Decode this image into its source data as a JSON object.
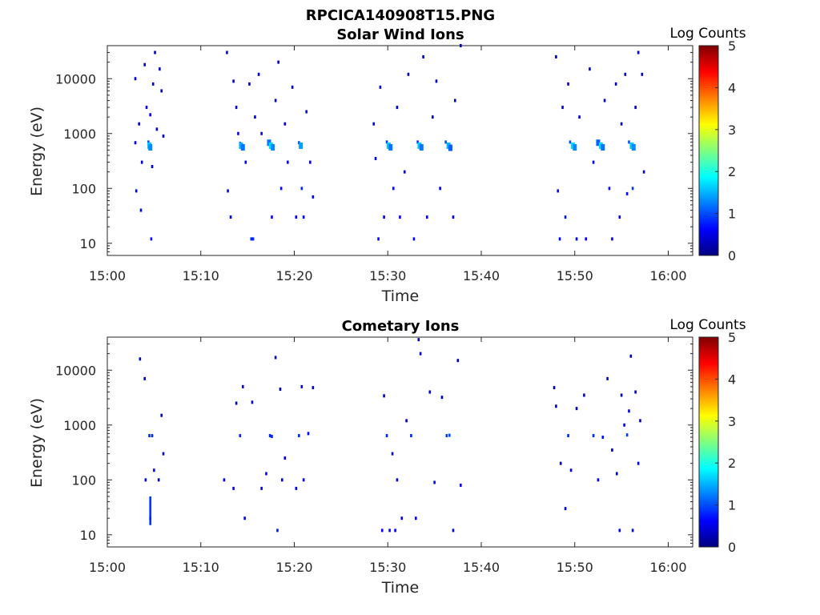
{
  "figure": {
    "title": "RPCICA140908T15.PNG"
  },
  "panels": [
    {
      "title": "Solar Wind Ions",
      "xlabel": "Time",
      "ylabel": "Energy (eV)",
      "colorbar_label": "Log Counts"
    },
    {
      "title": "Cometary Ions",
      "xlabel": "Time",
      "ylabel": "Energy (eV)",
      "colorbar_label": "Log Counts"
    }
  ],
  "chart_data": [
    {
      "type": "heatmap",
      "title": "Solar Wind Ions",
      "xlabel": "Time",
      "ylabel": "Energy (eV)",
      "x_ticks": [
        "15:00",
        "15:10",
        "15:20",
        "15:30",
        "15:40",
        "15:50",
        "16:00"
      ],
      "xlim_minutes_after_15_00": [
        0,
        63
      ],
      "y_scale": "log",
      "y_ticks": [
        10,
        100,
        1000,
        10000
      ],
      "ylim": [
        6,
        40000
      ],
      "colorbar": {
        "label": "Log Counts",
        "ticks": [
          0,
          1,
          2,
          3,
          4,
          5
        ],
        "range": [
          0,
          5
        ],
        "colormap": "jet"
      },
      "cells": [
        {
          "t": 3.0,
          "e": 680,
          "c": 0.5
        },
        {
          "t": 3.0,
          "e": 10000,
          "c": 0.3
        },
        {
          "t": 3.1,
          "e": 90,
          "c": 0.6
        },
        {
          "t": 3.4,
          "e": 1500,
          "c": 0.4
        },
        {
          "t": 3.6,
          "e": 40,
          "c": 0.5
        },
        {
          "t": 3.7,
          "e": 300,
          "c": 0.4
        },
        {
          "t": 4.0,
          "e": 18000,
          "c": 0.3
        },
        {
          "t": 4.2,
          "e": 3000,
          "c": 0.5
        },
        {
          "t": 4.4,
          "e": 700,
          "c": 1.0
        },
        {
          "t": 4.5,
          "e": 600,
          "c": 1.6
        },
        {
          "t": 4.6,
          "e": 560,
          "c": 1.3
        },
        {
          "t": 4.6,
          "e": 2200,
          "c": 0.6
        },
        {
          "t": 4.7,
          "e": 12,
          "c": 0.7
        },
        {
          "t": 4.8,
          "e": 250,
          "c": 0.5
        },
        {
          "t": 4.9,
          "e": 8000,
          "c": 0.3
        },
        {
          "t": 5.1,
          "e": 30000,
          "c": 0.3
        },
        {
          "t": 5.3,
          "e": 1200,
          "c": 0.5
        },
        {
          "t": 5.6,
          "e": 15000,
          "c": 0.3
        },
        {
          "t": 5.8,
          "e": 6000,
          "c": 0.3
        },
        {
          "t": 6.0,
          "e": 900,
          "c": 0.4
        },
        {
          "t": 12.8,
          "e": 30000,
          "c": 0.3
        },
        {
          "t": 12.9,
          "e": 90,
          "c": 0.6
        },
        {
          "t": 13.2,
          "e": 30,
          "c": 0.6
        },
        {
          "t": 13.5,
          "e": 9000,
          "c": 0.3
        },
        {
          "t": 13.8,
          "e": 3000,
          "c": 0.4
        },
        {
          "t": 14.0,
          "e": 1000,
          "c": 0.5
        },
        {
          "t": 14.2,
          "e": 660,
          "c": 1.0
        },
        {
          "t": 14.3,
          "e": 600,
          "c": 1.5
        },
        {
          "t": 14.5,
          "e": 560,
          "c": 1.2
        },
        {
          "t": 14.8,
          "e": 300,
          "c": 0.5
        },
        {
          "t": 15.2,
          "e": 8000,
          "c": 0.3
        },
        {
          "t": 15.4,
          "e": 12,
          "c": 0.8
        },
        {
          "t": 15.6,
          "e": 12,
          "c": 0.8
        },
        {
          "t": 15.8,
          "e": 2000,
          "c": 0.4
        },
        {
          "t": 16.2,
          "e": 12000,
          "c": 0.3
        },
        {
          "t": 16.5,
          "e": 1000,
          "c": 0.5
        },
        {
          "t": 17.3,
          "e": 680,
          "c": 1.2
        },
        {
          "t": 17.5,
          "e": 600,
          "c": 1.7
        },
        {
          "t": 17.7,
          "e": 560,
          "c": 1.3
        },
        {
          "t": 17.6,
          "e": 30,
          "c": 0.6
        },
        {
          "t": 18.0,
          "e": 4000,
          "c": 0.3
        },
        {
          "t": 18.3,
          "e": 20000,
          "c": 0.3
        },
        {
          "t": 18.6,
          "e": 100,
          "c": 0.6
        },
        {
          "t": 19.0,
          "e": 1500,
          "c": 0.4
        },
        {
          "t": 19.3,
          "e": 300,
          "c": 0.4
        },
        {
          "t": 19.8,
          "e": 7000,
          "c": 0.3
        },
        {
          "t": 20.2,
          "e": 30,
          "c": 0.6
        },
        {
          "t": 20.5,
          "e": 680,
          "c": 1.0
        },
        {
          "t": 20.7,
          "e": 600,
          "c": 1.4
        },
        {
          "t": 20.8,
          "e": 100,
          "c": 0.8
        },
        {
          "t": 21.0,
          "e": 30,
          "c": 0.6
        },
        {
          "t": 21.3,
          "e": 2500,
          "c": 0.4
        },
        {
          "t": 21.7,
          "e": 300,
          "c": 0.4
        },
        {
          "t": 22.0,
          "e": 70,
          "c": 0.6
        },
        {
          "t": 28.5,
          "e": 1500,
          "c": 0.4
        },
        {
          "t": 28.7,
          "e": 350,
          "c": 0.4
        },
        {
          "t": 29.0,
          "e": 12,
          "c": 0.6
        },
        {
          "t": 29.2,
          "e": 7000,
          "c": 0.3
        },
        {
          "t": 29.6,
          "e": 30,
          "c": 0.6
        },
        {
          "t": 29.9,
          "e": 700,
          "c": 0.9
        },
        {
          "t": 30.1,
          "e": 600,
          "c": 1.6
        },
        {
          "t": 30.3,
          "e": 560,
          "c": 1.2
        },
        {
          "t": 30.6,
          "e": 100,
          "c": 0.6
        },
        {
          "t": 31.0,
          "e": 3000,
          "c": 0.4
        },
        {
          "t": 31.3,
          "e": 30,
          "c": 0.6
        },
        {
          "t": 31.8,
          "e": 200,
          "c": 0.4
        },
        {
          "t": 32.2,
          "e": 12000,
          "c": 0.3
        },
        {
          "t": 32.8,
          "e": 12,
          "c": 0.6
        },
        {
          "t": 33.2,
          "e": 700,
          "c": 0.9
        },
        {
          "t": 33.4,
          "e": 600,
          "c": 1.6
        },
        {
          "t": 33.6,
          "e": 560,
          "c": 1.2
        },
        {
          "t": 33.8,
          "e": 25000,
          "c": 0.3
        },
        {
          "t": 34.2,
          "e": 30,
          "c": 0.6
        },
        {
          "t": 34.8,
          "e": 2000,
          "c": 0.4
        },
        {
          "t": 35.2,
          "e": 9000,
          "c": 0.3
        },
        {
          "t": 35.6,
          "e": 100,
          "c": 0.5
        },
        {
          "t": 36.2,
          "e": 700,
          "c": 1.0
        },
        {
          "t": 36.5,
          "e": 600,
          "c": 1.5
        },
        {
          "t": 36.7,
          "e": 550,
          "c": 1.1
        },
        {
          "t": 37.0,
          "e": 30,
          "c": 0.6
        },
        {
          "t": 37.2,
          "e": 4000,
          "c": 0.3
        },
        {
          "t": 37.8,
          "e": 40000,
          "c": 0.3
        },
        {
          "t": 48.0,
          "e": 25000,
          "c": 0.3
        },
        {
          "t": 48.2,
          "e": 90,
          "c": 0.6
        },
        {
          "t": 48.4,
          "e": 12,
          "c": 0.6
        },
        {
          "t": 48.7,
          "e": 3000,
          "c": 0.4
        },
        {
          "t": 49.0,
          "e": 30,
          "c": 0.7
        },
        {
          "t": 49.3,
          "e": 8000,
          "c": 0.3
        },
        {
          "t": 49.5,
          "e": 700,
          "c": 1.0
        },
        {
          "t": 49.8,
          "e": 600,
          "c": 1.7
        },
        {
          "t": 50.0,
          "e": 560,
          "c": 1.3
        },
        {
          "t": 50.2,
          "e": 12,
          "c": 0.6
        },
        {
          "t": 50.5,
          "e": 2000,
          "c": 0.4
        },
        {
          "t": 51.2,
          "e": 12,
          "c": 0.6
        },
        {
          "t": 51.6,
          "e": 15000,
          "c": 0.3
        },
        {
          "t": 52.0,
          "e": 300,
          "c": 0.4
        },
        {
          "t": 52.5,
          "e": 680,
          "c": 1.1
        },
        {
          "t": 52.8,
          "e": 600,
          "c": 1.7
        },
        {
          "t": 53.0,
          "e": 560,
          "c": 1.2
        },
        {
          "t": 53.2,
          "e": 4000,
          "c": 0.3
        },
        {
          "t": 53.7,
          "e": 100,
          "c": 0.6
        },
        {
          "t": 54.0,
          "e": 12,
          "c": 0.6
        },
        {
          "t": 54.4,
          "e": 8000,
          "c": 0.3
        },
        {
          "t": 54.8,
          "e": 30,
          "c": 0.6
        },
        {
          "t": 55.0,
          "e": 1500,
          "c": 0.4
        },
        {
          "t": 55.4,
          "e": 12000,
          "c": 0.3
        },
        {
          "t": 55.6,
          "e": 80,
          "c": 0.7
        },
        {
          "t": 55.8,
          "e": 700,
          "c": 1.0
        },
        {
          "t": 56.1,
          "e": 600,
          "c": 1.6
        },
        {
          "t": 56.3,
          "e": 560,
          "c": 1.3
        },
        {
          "t": 56.2,
          "e": 100,
          "c": 0.9
        },
        {
          "t": 56.5,
          "e": 3000,
          "c": 0.4
        },
        {
          "t": 56.8,
          "e": 30000,
          "c": 0.3
        },
        {
          "t": 57.2,
          "e": 12000,
          "c": 0.3
        },
        {
          "t": 57.4,
          "e": 200,
          "c": 0.4
        }
      ]
    },
    {
      "type": "heatmap",
      "title": "Cometary Ions",
      "xlabel": "Time",
      "ylabel": "Energy (eV)",
      "x_ticks": [
        "15:00",
        "15:10",
        "15:20",
        "15:30",
        "15:40",
        "15:50",
        "16:00"
      ],
      "xlim_minutes_after_15_00": [
        0,
        63
      ],
      "y_scale": "log",
      "y_ticks": [
        10,
        100,
        1000,
        10000
      ],
      "ylim": [
        6,
        40000
      ],
      "colorbar": {
        "label": "Log Counts",
        "ticks": [
          0,
          1,
          2,
          3,
          4,
          5
        ],
        "range": [
          0,
          5
        ],
        "colormap": "jet"
      },
      "cells": [
        {
          "t": 3.5,
          "e": 16000,
          "c": 0.3
        },
        {
          "t": 4.0,
          "e": 7000,
          "c": 0.3
        },
        {
          "t": 4.1,
          "e": 100,
          "c": 0.6
        },
        {
          "t": 4.5,
          "e": 640,
          "c": 0.8
        },
        {
          "t": 4.6,
          "e": 20,
          "c": 0.8
        },
        {
          "t": 4.8,
          "e": 640,
          "c": 0.8
        },
        {
          "t": 5.0,
          "e": 150,
          "c": 0.5
        },
        {
          "t": 5.5,
          "e": 100,
          "c": 0.5
        },
        {
          "t": 5.8,
          "e": 1500,
          "c": 0.3
        },
        {
          "t": 6.0,
          "e": 300,
          "c": 0.4
        },
        {
          "t": 12.5,
          "e": 100,
          "c": 0.6
        },
        {
          "t": 13.5,
          "e": 70,
          "c": 0.5
        },
        {
          "t": 13.8,
          "e": 2500,
          "c": 0.3
        },
        {
          "t": 14.2,
          "e": 640,
          "c": 0.8
        },
        {
          "t": 14.5,
          "e": 5000,
          "c": 0.3
        },
        {
          "t": 14.7,
          "e": 20,
          "c": 0.6
        },
        {
          "t": 15.5,
          "e": 2600,
          "c": 0.3
        },
        {
          "t": 16.5,
          "e": 70,
          "c": 0.5
        },
        {
          "t": 17.0,
          "e": 130,
          "c": 0.5
        },
        {
          "t": 17.4,
          "e": 640,
          "c": 0.8
        },
        {
          "t": 17.6,
          "e": 620,
          "c": 0.8
        },
        {
          "t": 18.0,
          "e": 17000,
          "c": 0.3
        },
        {
          "t": 18.2,
          "e": 12,
          "c": 0.7
        },
        {
          "t": 18.5,
          "e": 4500,
          "c": 0.3
        },
        {
          "t": 18.7,
          "e": 100,
          "c": 0.5
        },
        {
          "t": 19.0,
          "e": 250,
          "c": 0.4
        },
        {
          "t": 20.2,
          "e": 70,
          "c": 0.5
        },
        {
          "t": 20.5,
          "e": 640,
          "c": 0.8
        },
        {
          "t": 20.8,
          "e": 5000,
          "c": 0.3
        },
        {
          "t": 21.0,
          "e": 100,
          "c": 0.5
        },
        {
          "t": 21.5,
          "e": 700,
          "c": 0.6
        },
        {
          "t": 22.0,
          "e": 4800,
          "c": 0.3
        },
        {
          "t": 29.4,
          "e": 12,
          "c": 0.6
        },
        {
          "t": 29.6,
          "e": 3400,
          "c": 0.3
        },
        {
          "t": 29.9,
          "e": 640,
          "c": 0.8
        },
        {
          "t": 30.2,
          "e": 12,
          "c": 0.6
        },
        {
          "t": 30.5,
          "e": 300,
          "c": 0.4
        },
        {
          "t": 30.8,
          "e": 12,
          "c": 0.6
        },
        {
          "t": 31.0,
          "e": 100,
          "c": 0.5
        },
        {
          "t": 31.5,
          "e": 20,
          "c": 0.6
        },
        {
          "t": 32.0,
          "e": 1200,
          "c": 0.3
        },
        {
          "t": 32.5,
          "e": 640,
          "c": 0.8
        },
        {
          "t": 33.0,
          "e": 20,
          "c": 0.6
        },
        {
          "t": 33.3,
          "e": 36000,
          "c": 0.3
        },
        {
          "t": 33.5,
          "e": 20000,
          "c": 0.3
        },
        {
          "t": 34.5,
          "e": 4000,
          "c": 0.3
        },
        {
          "t": 35.0,
          "e": 90,
          "c": 0.5
        },
        {
          "t": 35.8,
          "e": 3200,
          "c": 0.3
        },
        {
          "t": 36.3,
          "e": 640,
          "c": 0.9
        },
        {
          "t": 36.6,
          "e": 650,
          "c": 1.0
        },
        {
          "t": 37.0,
          "e": 12,
          "c": 0.6
        },
        {
          "t": 37.5,
          "e": 15000,
          "c": 0.3
        },
        {
          "t": 37.8,
          "e": 80,
          "c": 0.5
        },
        {
          "t": 47.8,
          "e": 4800,
          "c": 0.3
        },
        {
          "t": 48.0,
          "e": 2200,
          "c": 0.3
        },
        {
          "t": 48.5,
          "e": 200,
          "c": 0.5
        },
        {
          "t": 49.0,
          "e": 30,
          "c": 0.6
        },
        {
          "t": 49.3,
          "e": 640,
          "c": 0.8
        },
        {
          "t": 49.6,
          "e": 150,
          "c": 0.5
        },
        {
          "t": 50.2,
          "e": 2000,
          "c": 0.3
        },
        {
          "t": 51.0,
          "e": 3500,
          "c": 0.3
        },
        {
          "t": 52.0,
          "e": 640,
          "c": 0.8
        },
        {
          "t": 52.5,
          "e": 100,
          "c": 0.5
        },
        {
          "t": 53.0,
          "e": 600,
          "c": 0.7
        },
        {
          "t": 53.5,
          "e": 7000,
          "c": 0.3
        },
        {
          "t": 54.0,
          "e": 350,
          "c": 0.4
        },
        {
          "t": 54.5,
          "e": 130,
          "c": 0.6
        },
        {
          "t": 54.8,
          "e": 12,
          "c": 0.6
        },
        {
          "t": 55.0,
          "e": 3500,
          "c": 0.3
        },
        {
          "t": 55.3,
          "e": 1000,
          "c": 0.5
        },
        {
          "t": 55.6,
          "e": 660,
          "c": 0.9
        },
        {
          "t": 55.8,
          "e": 1800,
          "c": 0.5
        },
        {
          "t": 56.0,
          "e": 18000,
          "c": 0.3
        },
        {
          "t": 56.2,
          "e": 12,
          "c": 0.6
        },
        {
          "t": 56.5,
          "e": 4000,
          "c": 0.4
        },
        {
          "t": 56.8,
          "e": 200,
          "c": 0.5
        },
        {
          "t": 57.0,
          "e": 1200,
          "c": 0.4
        }
      ],
      "strips": [
        {
          "t": 4.6,
          "e_from": 15,
          "e_to": 50,
          "c": 0.9
        }
      ]
    }
  ]
}
